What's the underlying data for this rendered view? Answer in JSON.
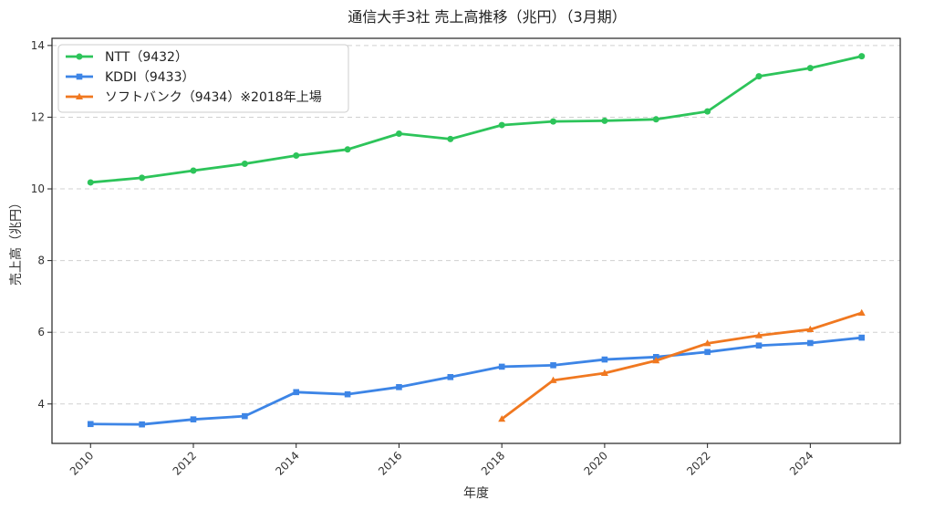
{
  "chart_data": {
    "type": "line",
    "title": "通信大手3社 売上高推移（兆円）（3月期）",
    "xlabel": "年度",
    "ylabel": "売上高（兆円）",
    "xlim": [
      2009.25,
      2025.75
    ],
    "ylim": [
      2.9,
      14.2
    ],
    "x_ticks": [
      2010,
      2012,
      2014,
      2016,
      2018,
      2020,
      2022,
      2024
    ],
    "y_ticks": [
      4,
      6,
      8,
      10,
      12,
      14
    ],
    "grid": "horizontal-dashed",
    "legend_position": "top-left",
    "series": [
      {
        "name": "NTT（9432）",
        "color": "#2dc45a",
        "marker": "circle",
        "x": [
          2010,
          2011,
          2012,
          2013,
          2014,
          2015,
          2016,
          2017,
          2018,
          2019,
          2020,
          2021,
          2022,
          2023,
          2024,
          2025
        ],
        "y": [
          10.18,
          10.31,
          10.51,
          10.7,
          10.93,
          11.1,
          11.54,
          11.39,
          11.78,
          11.88,
          11.9,
          11.94,
          12.16,
          13.14,
          13.37,
          13.7
        ]
      },
      {
        "name": "KDDI（9433）",
        "color": "#3d85e6",
        "marker": "square",
        "x": [
          2010,
          2011,
          2012,
          2013,
          2014,
          2015,
          2016,
          2017,
          2018,
          2019,
          2020,
          2021,
          2022,
          2023,
          2024,
          2025
        ],
        "y": [
          3.44,
          3.43,
          3.57,
          3.66,
          4.33,
          4.27,
          4.47,
          4.75,
          5.04,
          5.08,
          5.24,
          5.31,
          5.45,
          5.63,
          5.7,
          5.85
        ]
      },
      {
        "name": "ソフトバンク（9434）※2018年上場",
        "color": "#f07820",
        "marker": "triangle",
        "x": [
          2018,
          2019,
          2020,
          2021,
          2022,
          2023,
          2024,
          2025
        ],
        "y": [
          3.58,
          4.66,
          4.86,
          5.21,
          5.69,
          5.91,
          6.08,
          6.54
        ]
      }
    ]
  }
}
